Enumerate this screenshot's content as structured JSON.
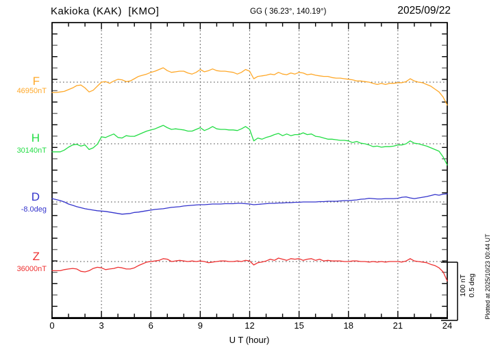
{
  "header": {
    "station": "Kakioka (KAK)  [KMO]",
    "coords": "GG ( 36.23°, 140.19°)",
    "date": "2025/09/22"
  },
  "axis": {
    "xlabel": "U T (hour)",
    "x_ticks": [
      "0",
      "3",
      "6",
      "9",
      "12",
      "15",
      "18",
      "21",
      "24"
    ]
  },
  "scalebar": {
    "line1": "100 nT",
    "line2": "0.5 deg"
  },
  "plotted_at": "Plotted at 2025/10/23 00:44 UT",
  "chart_data": {
    "type": "line",
    "title": "Kakioka (KAK) [KMO] magnetogram 2025/09/22",
    "xlabel": "U T (hour)",
    "x_range": [
      0,
      24
    ],
    "x_start": 0,
    "x_step_hours": 0.25,
    "x_ticks": [
      0,
      3,
      6,
      9,
      12,
      15,
      18,
      21,
      24
    ],
    "grid": "dotted vertical lines every 3 h; dotted horizontal baseline per trace",
    "scale": {
      "scalebar_nT": 100,
      "scalebar_deg": 0.5,
      "nT_per_minor_tick": 20
    },
    "series": [
      {
        "name": "F",
        "units": "nT",
        "color": "#FFA828",
        "baseline": 46950,
        "baseline_label": "46950nT",
        "values": [
          46932,
          46932,
          46933,
          46934,
          46937,
          46940,
          46944,
          46945,
          46940,
          46933,
          46936,
          46943,
          46950,
          46951,
          46948,
          46952,
          46955,
          46954,
          46951,
          46952,
          46956,
          46960,
          46962,
          46964,
          46967,
          46969,
          46972,
          46975,
          46970,
          46967,
          46968,
          46969,
          46969,
          46966,
          46964,
          46967,
          46972,
          46968,
          46970,
          46973,
          46970,
          46969,
          46969,
          46968,
          46967,
          46964,
          46967,
          46972,
          46969,
          46956,
          46960,
          46961,
          46962,
          46964,
          46963,
          46967,
          46964,
          46963,
          46966,
          46964,
          46967,
          46966,
          46963,
          46964,
          46962,
          46961,
          46960,
          46960,
          46958,
          46957,
          46957,
          46956,
          46955,
          46954,
          46952,
          46952,
          46951,
          46950,
          46948,
          46946,
          46948,
          46946,
          46948,
          46948,
          46949,
          46949,
          46951,
          46956,
          46952,
          46950,
          46949,
          46946,
          46943,
          46938,
          46933,
          46924,
          46910
        ]
      },
      {
        "name": "H",
        "units": "nT",
        "color": "#22DD44",
        "baseline": 30140,
        "baseline_label": "30140nT",
        "values": [
          30126,
          30126,
          30126,
          30129,
          30134,
          30138,
          30139,
          30136,
          30138,
          30130,
          30133,
          30139,
          30152,
          30151,
          30154,
          30157,
          30151,
          30150,
          30154,
          30153,
          30153,
          30156,
          30159,
          30162,
          30164,
          30166,
          30169,
          30172,
          30168,
          30165,
          30166,
          30165,
          30164,
          30162,
          30162,
          30165,
          30168,
          30163,
          30166,
          30170,
          30166,
          30165,
          30165,
          30164,
          30164,
          30163,
          30166,
          30170,
          30165,
          30145,
          30150,
          30148,
          30151,
          30153,
          30156,
          30158,
          30154,
          30157,
          30154,
          30156,
          30156,
          30159,
          30156,
          30157,
          30153,
          30152,
          30150,
          30148,
          30148,
          30147,
          30146,
          30146,
          30145,
          30142,
          30144,
          30141,
          30140,
          30138,
          30135,
          30136,
          30134,
          30135,
          30135,
          30136,
          30138,
          30138,
          30140,
          30145,
          30141,
          30140,
          30138,
          30136,
          30133,
          30130,
          30127,
          30117,
          30103
        ]
      },
      {
        "name": "D",
        "units": "deg",
        "color": "#3333CC",
        "baseline": -8.0,
        "baseline_label": "-8.0deg",
        "values": [
          -7.971,
          -7.979,
          -7.988,
          -8.0,
          -8.018,
          -8.029,
          -8.041,
          -8.05,
          -8.059,
          -8.065,
          -8.071,
          -8.076,
          -8.079,
          -8.082,
          -8.088,
          -8.094,
          -8.1,
          -8.106,
          -8.103,
          -8.1,
          -8.091,
          -8.088,
          -8.082,
          -8.076,
          -8.071,
          -8.065,
          -8.062,
          -8.059,
          -8.053,
          -8.047,
          -8.044,
          -8.041,
          -8.035,
          -8.032,
          -8.029,
          -8.026,
          -8.024,
          -8.024,
          -8.021,
          -8.018,
          -8.018,
          -8.018,
          -8.015,
          -8.015,
          -8.015,
          -8.012,
          -8.012,
          -8.015,
          -8.018,
          -8.024,
          -8.021,
          -8.018,
          -8.015,
          -8.012,
          -8.012,
          -8.009,
          -8.009,
          -8.006,
          -8.006,
          -8.003,
          -8.003,
          -8.0,
          -8.0,
          -8.0,
          -8.0,
          -7.997,
          -7.997,
          -7.994,
          -7.994,
          -7.994,
          -7.991,
          -7.988,
          -7.988,
          -7.985,
          -7.982,
          -7.976,
          -7.974,
          -7.968,
          -7.971,
          -7.974,
          -7.974,
          -7.971,
          -7.971,
          -7.971,
          -7.968,
          -7.959,
          -7.956,
          -7.965,
          -7.971,
          -7.965,
          -7.959,
          -7.953,
          -7.944,
          -7.935,
          -7.941,
          -7.932,
          -7.929
        ]
      },
      {
        "name": "Z",
        "units": "nT",
        "color": "#EE3030",
        "baseline": 36000,
        "baseline_label": "36000nT",
        "values": [
          35984,
          35984,
          35984,
          35986,
          35987,
          35988,
          35987,
          35983,
          35982,
          35984,
          35988,
          35990,
          35989,
          35986,
          35987,
          35988,
          35990,
          35989,
          35987,
          35987,
          35989,
          35993,
          35996,
          35999,
          36000,
          36001,
          36002,
          36005,
          36004,
          36000,
          36001,
          36002,
          36001,
          36000,
          36001,
          36000,
          36001,
          36000,
          35998,
          35999,
          36000,
          36001,
          36001,
          36000,
          36000,
          36001,
          36000,
          36002,
          36001,
          35994,
          35998,
          35999,
          36001,
          36004,
          36002,
          36006,
          36004,
          36002,
          36005,
          36004,
          36005,
          36002,
          36004,
          36005,
          36002,
          36004,
          36001,
          36002,
          36001,
          36001,
          36001,
          36000,
          36000,
          36001,
          36001,
          36000,
          36000,
          35999,
          36000,
          35999,
          36000,
          35999,
          36000,
          36000,
          36000,
          35999,
          36001,
          36005,
          36001,
          36000,
          35999,
          35998,
          35995,
          35993,
          35989,
          35982,
          35966
        ]
      }
    ]
  }
}
